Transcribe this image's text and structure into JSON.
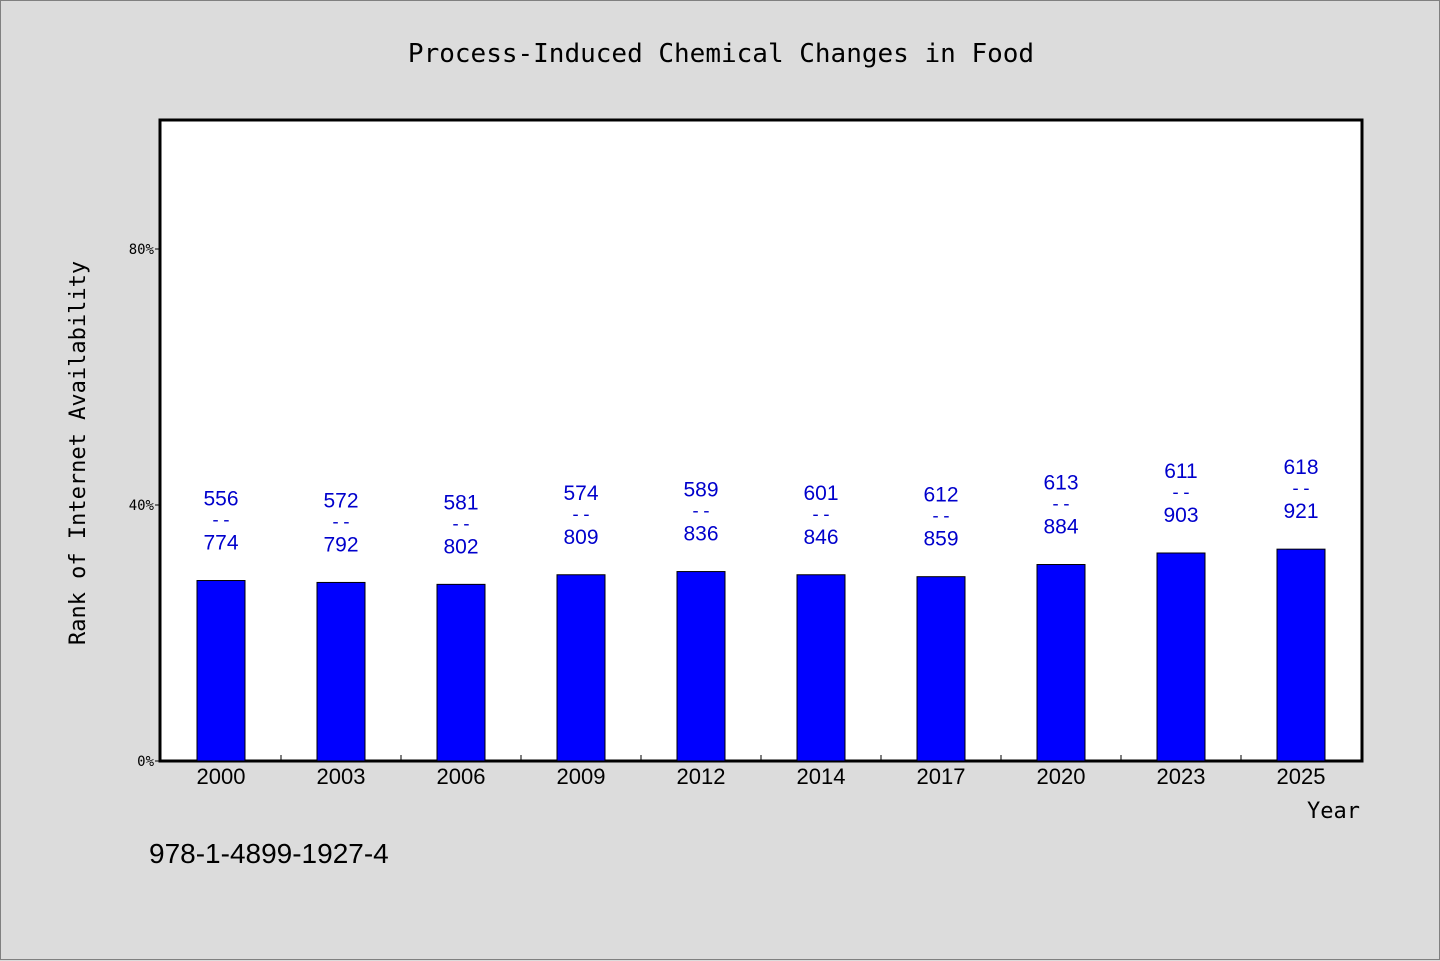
{
  "chart_data": {
    "type": "bar",
    "title": "Process-Induced Chemical Changes in Food",
    "xlabel": "Year",
    "ylabel": "Rank of Internet Availability",
    "categories": [
      "2000",
      "2003",
      "2006",
      "2009",
      "2012",
      "2014",
      "2017",
      "2020",
      "2023",
      "2025"
    ],
    "values": [
      28.2,
      27.9,
      27.6,
      29.1,
      29.6,
      29.1,
      28.8,
      30.7,
      32.5,
      33.1
    ],
    "data_labels": [
      {
        "top": "556",
        "sep": "--",
        "bottom": "774"
      },
      {
        "top": "572",
        "sep": "--",
        "bottom": "792"
      },
      {
        "top": "581",
        "sep": "--",
        "bottom": "802"
      },
      {
        "top": "574",
        "sep": "--",
        "bottom": "809"
      },
      {
        "top": "589",
        "sep": "--",
        "bottom": "836"
      },
      {
        "top": "601",
        "sep": "--",
        "bottom": "846"
      },
      {
        "top": "612",
        "sep": "--",
        "bottom": "859"
      },
      {
        "top": "613",
        "sep": "--",
        "bottom": "884"
      },
      {
        "top": "611",
        "sep": "--",
        "bottom": "903"
      },
      {
        "top": "618",
        "sep": "--",
        "bottom": "921"
      }
    ],
    "yticks": [
      0,
      40,
      80
    ],
    "ytick_labels": [
      "0%",
      "40%",
      "80%"
    ],
    "ylim": [
      0,
      100
    ],
    "grid": false,
    "bar_color": "#0000ff",
    "label_color": "#0000cc"
  },
  "footer": {
    "isbn": "978-1-4899-1927-4"
  }
}
